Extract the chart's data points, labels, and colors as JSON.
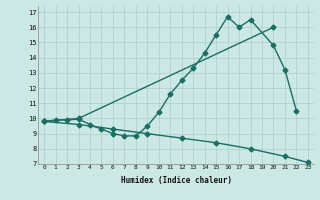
{
  "xlabel": "Humidex (Indice chaleur)",
  "xlim": [
    -0.5,
    23.5
  ],
  "ylim": [
    7,
    17.4
  ],
  "xticks": [
    0,
    1,
    2,
    3,
    4,
    5,
    6,
    7,
    8,
    9,
    10,
    11,
    12,
    13,
    14,
    15,
    16,
    17,
    18,
    19,
    20,
    21,
    22,
    23
  ],
  "yticks": [
    7,
    8,
    9,
    10,
    11,
    12,
    13,
    14,
    15,
    16,
    17
  ],
  "bg_color": "#cce8e4",
  "grid_color": "#aad0cc",
  "line_color": "#1a6e64",
  "line1": {
    "x": [
      0,
      3,
      20
    ],
    "y": [
      9.8,
      10.0,
      16.0
    ]
  },
  "line2": {
    "x": [
      0,
      1,
      2,
      3,
      4,
      5,
      6,
      7,
      8,
      9,
      10,
      11,
      12,
      13,
      14,
      15,
      16,
      17,
      18,
      20,
      21,
      22
    ],
    "y": [
      9.8,
      9.9,
      9.9,
      9.95,
      9.6,
      9.3,
      9.0,
      8.85,
      8.85,
      9.5,
      10.4,
      11.6,
      12.5,
      13.3,
      14.3,
      15.5,
      16.7,
      16.0,
      16.5,
      14.8,
      13.2,
      10.5
    ]
  },
  "line3": {
    "x": [
      0,
      3,
      6,
      9,
      12,
      15,
      18,
      21,
      23
    ],
    "y": [
      9.8,
      9.6,
      9.3,
      9.0,
      8.7,
      8.4,
      8.0,
      7.5,
      7.1
    ]
  },
  "markersize": 2.5,
  "linewidth": 1.0
}
